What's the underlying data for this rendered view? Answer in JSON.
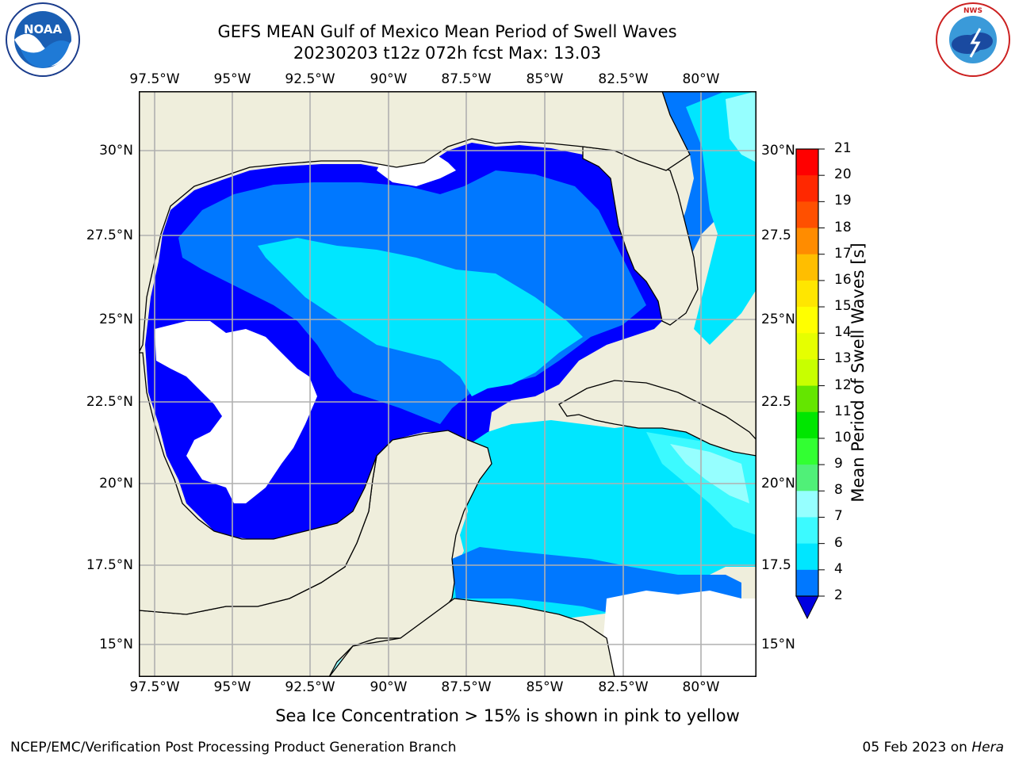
{
  "header": {
    "title_line1": "GEFS MEAN Gulf of Mexico Mean Period of Swell Waves",
    "title_line2": "20230203 t12z 072h fcst   Max: 13.03"
  },
  "logos": {
    "noaa_text": "NOAA",
    "noaa_ring": "NATIONAL OCEANIC AND ATMOSPHERIC ADMINISTRATION · U.S. DEPARTMENT OF COMMERCE",
    "nws_ring": "NATIONAL WEATHER SERVICE"
  },
  "map": {
    "lon_labels": [
      "97.5°W",
      "95°W",
      "92.5°W",
      "90°W",
      "87.5°W",
      "85°W",
      "82.5°W",
      "80°W"
    ],
    "lat_labels_left": [
      "30°N",
      "27.5°N",
      "25°N",
      "22.5°N",
      "20°N",
      "17.5°N",
      "15°N"
    ],
    "lat_labels_right": [
      "30°N",
      "27.5",
      "25°N",
      "22.5",
      "20°N",
      "17.5",
      "15°N"
    ],
    "colors": {
      "land": "#efeedc",
      "no_data": "#ffffff",
      "grid": "#b0b0b0",
      "coast": "#000000"
    }
  },
  "colorbar": {
    "label": "Mean Period of Swell Waves [s]",
    "tick_labels": [
      "21",
      "20",
      "19",
      "18",
      "17",
      "16",
      "15",
      "14",
      "13",
      "12",
      "11",
      "10",
      "9",
      "8",
      "7",
      "6",
      "4",
      "2"
    ],
    "levels": [
      2,
      4,
      6,
      7,
      8,
      9,
      10,
      11,
      12,
      13,
      14,
      15,
      16,
      17,
      18,
      19,
      20,
      21
    ],
    "colors": [
      "#0000ff",
      "#0078ff",
      "#00e6ff",
      "#3cfaff",
      "#96ffff",
      "#50f078",
      "#32ff32",
      "#00e600",
      "#64e600",
      "#c8ff00",
      "#e6ff00",
      "#ffff00",
      "#ffe600",
      "#ffbe00",
      "#ff8c00",
      "#ff5000",
      "#ff2800",
      "#ff0000"
    ],
    "under_color": "#0000e0"
  },
  "caption": "Sea Ice Concentration > 15% is shown in pink to yellow",
  "footer": {
    "left": "NCEP/EMC/Verification Post Processing Product Generation Branch",
    "right_prefix": "05 Feb 2023 on ",
    "right_host": "Hera"
  }
}
